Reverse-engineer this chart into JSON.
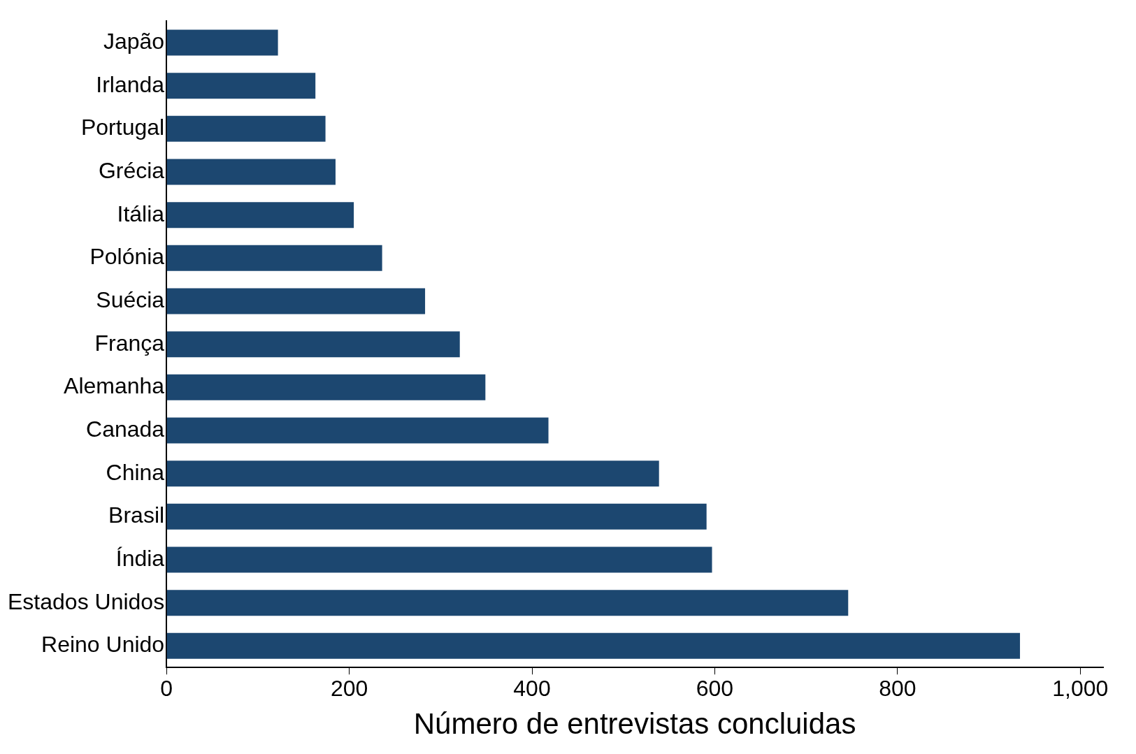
{
  "chart_data": {
    "type": "bar",
    "orientation": "horizontal",
    "xlabel": "Número de entrevistas concluidas",
    "categories": [
      "Japão",
      "Irlanda",
      "Portugal",
      "Grécia",
      "Itália",
      "Polónia",
      "Suécia",
      "França",
      "Alemanha",
      "Canada",
      "China",
      "Brasil",
      "Índia",
      "Estados Unidos",
      "Reino Unido"
    ],
    "values": [
      122,
      163,
      174,
      185,
      205,
      236,
      283,
      321,
      349,
      418,
      539,
      591,
      597,
      746,
      934
    ],
    "color": "#1c4770",
    "xlim": [
      0,
      1025
    ],
    "xticks": [
      0,
      200,
      400,
      600,
      800,
      {
        "value": 1000,
        "label": "1,000"
      }
    ],
    "legend": false
  }
}
